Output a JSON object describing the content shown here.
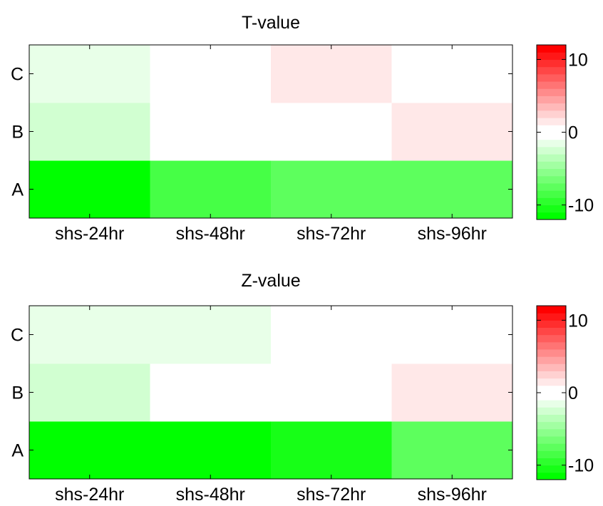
{
  "chart_data": [
    {
      "type": "heatmap",
      "title": "T-value",
      "xlabel": "",
      "ylabel": "",
      "x_categories": [
        "shs-24hr",
        "shs-48hr",
        "shs-72hr",
        "shs-96hr"
      ],
      "y_categories": [
        "A",
        "B",
        "C"
      ],
      "values": [
        [
          -12,
          -8.5,
          -7.5,
          -7.5
        ],
        [
          -2.5,
          0,
          0,
          1.5
        ],
        [
          -1.5,
          0,
          1.5,
          0
        ]
      ],
      "colorbar": {
        "range": [
          -12,
          12
        ],
        "ticks": [
          10,
          0,
          -10
        ],
        "levels": 24,
        "colormap": "green-white-red"
      },
      "grid": false
    },
    {
      "type": "heatmap",
      "title": "Z-value",
      "xlabel": "",
      "ylabel": "",
      "x_categories": [
        "shs-24hr",
        "shs-48hr",
        "shs-72hr",
        "shs-96hr"
      ],
      "y_categories": [
        "A",
        "B",
        "C"
      ],
      "values": [
        [
          -12,
          -12,
          -10.5,
          -7.5
        ],
        [
          -2.5,
          0,
          0,
          1.5
        ],
        [
          -1.5,
          -1.5,
          0,
          0
        ]
      ],
      "colorbar": {
        "range": [
          -12,
          12
        ],
        "ticks": [
          10,
          0,
          -10
        ],
        "levels": 24,
        "colormap": "green-white-red"
      },
      "grid": false
    }
  ]
}
